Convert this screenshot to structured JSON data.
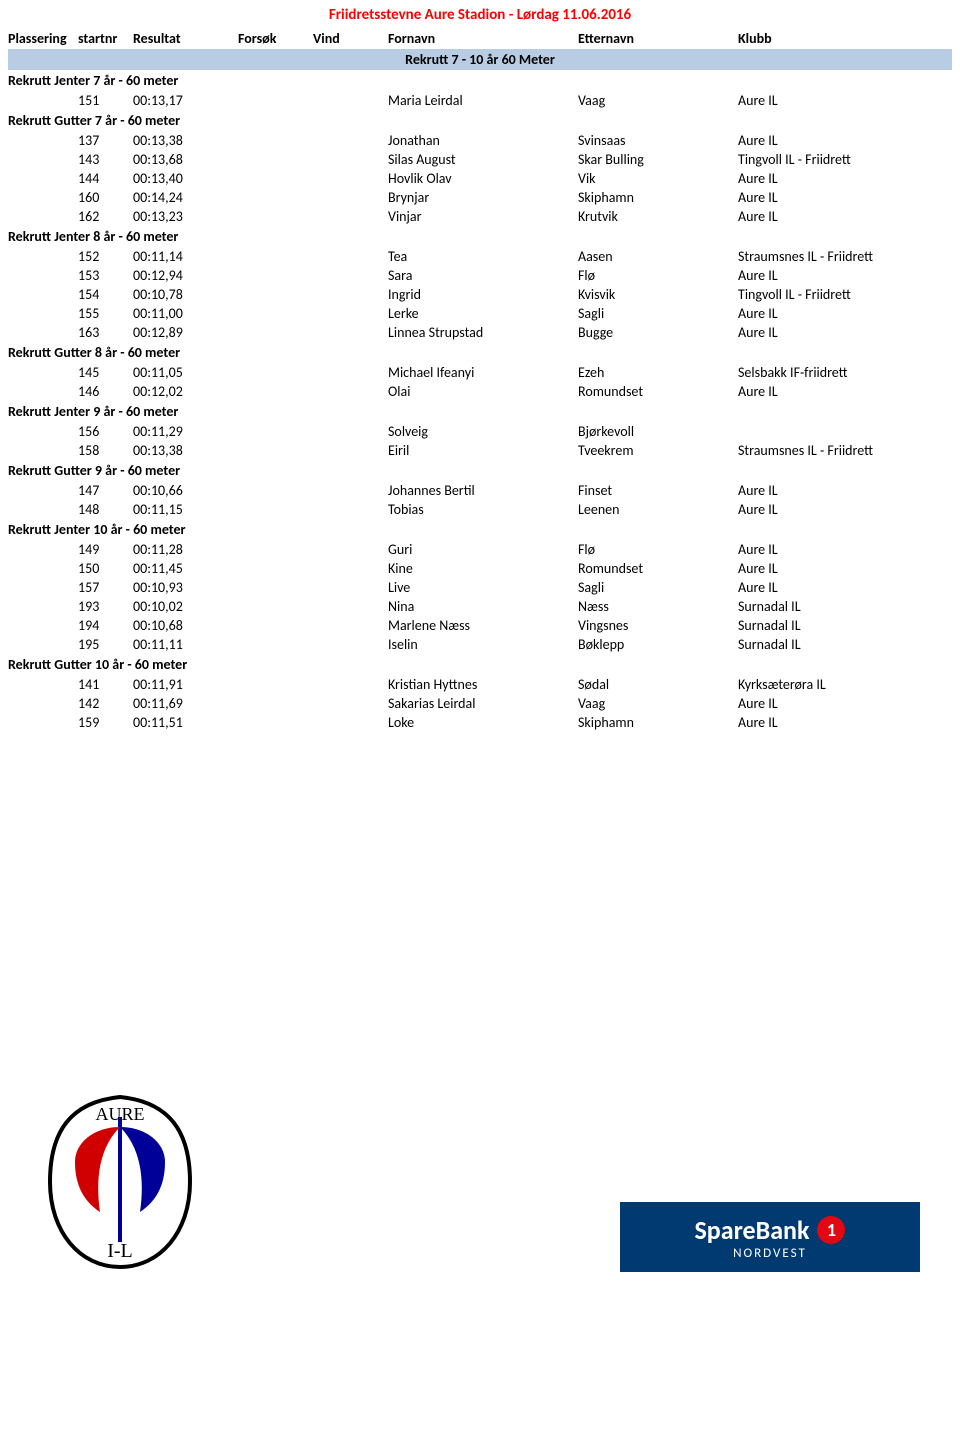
{
  "title": "Friidretsstevne Aure Stadion - Lørdag 11.06.2016",
  "title_color": "#ff0000",
  "banner": "Rekrutt 7 - 10 år 60 Meter",
  "banner_bg": "#b8cce4",
  "header": {
    "plassering": "Plassering",
    "startnr": "startnr",
    "resultat": "Resultat",
    "forsok": "Forsøk",
    "vind": "Vind",
    "fornavn": "Fornavn",
    "etternavn": "Etternavn",
    "klubb": "Klubb"
  },
  "groups": [
    {
      "label": "Rekrutt Jenter 7 år - 60 meter",
      "rows": [
        {
          "startnr": "151",
          "resultat": "00:13,17",
          "fornavn": "Maria Leirdal",
          "etternavn": "Vaag",
          "klubb": "Aure IL"
        }
      ]
    },
    {
      "label": "Rekrutt Gutter 7 år - 60 meter",
      "rows": [
        {
          "startnr": "137",
          "resultat": "00:13,38",
          "fornavn": "Jonathan",
          "etternavn": "Svinsaas",
          "klubb": "Aure IL"
        },
        {
          "startnr": "143",
          "resultat": "00:13,68",
          "fornavn": "Silas August",
          "etternavn": "Skar Bulling",
          "klubb": "Tingvoll IL - Friidrett"
        },
        {
          "startnr": "144",
          "resultat": "00:13,40",
          "fornavn": "Hovlik Olav",
          "etternavn": "Vik",
          "klubb": "Aure IL"
        },
        {
          "startnr": "160",
          "resultat": "00:14,24",
          "fornavn": "Brynjar",
          "etternavn": "Skiphamn",
          "klubb": "Aure IL"
        },
        {
          "startnr": "162",
          "resultat": "00:13,23",
          "fornavn": "Vinjar",
          "etternavn": "Krutvik",
          "klubb": "Aure IL"
        }
      ]
    },
    {
      "label": "Rekrutt Jenter 8 år - 60 meter",
      "rows": [
        {
          "startnr": "152",
          "resultat": "00:11,14",
          "fornavn": "Tea",
          "etternavn": "Aasen",
          "klubb": "Straumsnes IL - Friidrett"
        },
        {
          "startnr": "153",
          "resultat": "00:12,94",
          "fornavn": "Sara",
          "etternavn": "Flø",
          "klubb": "Aure IL"
        },
        {
          "startnr": "154",
          "resultat": "00:10,78",
          "fornavn": "Ingrid",
          "etternavn": "Kvisvik",
          "klubb": "Tingvoll IL - Friidrett"
        },
        {
          "startnr": "155",
          "resultat": "00:11,00",
          "fornavn": "Lerke",
          "etternavn": "Sagli",
          "klubb": "Aure IL"
        },
        {
          "startnr": "163",
          "resultat": "00:12,89",
          "fornavn": "Linnea Strupstad",
          "etternavn": "Bugge",
          "klubb": "Aure IL"
        }
      ]
    },
    {
      "label": "Rekrutt Gutter 8 år - 60 meter",
      "rows": [
        {
          "startnr": "145",
          "resultat": "00:11,05",
          "fornavn": "Michael Ifeanyi",
          "etternavn": "Ezeh",
          "klubb": "Selsbakk IF-friidrett"
        },
        {
          "startnr": "146",
          "resultat": "00:12,02",
          "fornavn": "Olai",
          "etternavn": "Romundset",
          "klubb": "Aure IL"
        }
      ]
    },
    {
      "label": "Rekrutt Jenter 9 år - 60 meter",
      "rows": [
        {
          "startnr": "156",
          "resultat": "00:11,29",
          "fornavn": "Solveig",
          "etternavn": "Bjørkevoll",
          "klubb": ""
        },
        {
          "startnr": "158",
          "resultat": "00:13,38",
          "fornavn": "Eiril",
          "etternavn": "Tveekrem",
          "klubb": "Straumsnes IL - Friidrett"
        }
      ]
    },
    {
      "label": "Rekrutt Gutter 9 år - 60 meter",
      "rows": [
        {
          "startnr": "147",
          "resultat": "00:10,66",
          "fornavn": "Johannes Bertil",
          "etternavn": "Finset",
          "klubb": "Aure IL"
        },
        {
          "startnr": "148",
          "resultat": "00:11,15",
          "fornavn": "Tobias",
          "etternavn": "Leenen",
          "klubb": "Aure IL"
        }
      ]
    },
    {
      "label": "Rekrutt Jenter 10 år - 60 meter",
      "rows": [
        {
          "startnr": "149",
          "resultat": "00:11,28",
          "fornavn": "Guri",
          "etternavn": "Flø",
          "klubb": "Aure IL"
        },
        {
          "startnr": "150",
          "resultat": "00:11,45",
          "fornavn": "Kine",
          "etternavn": "Romundset",
          "klubb": "Aure IL"
        },
        {
          "startnr": "157",
          "resultat": "00:10,93",
          "fornavn": "Live",
          "etternavn": "Sagli",
          "klubb": "Aure IL"
        },
        {
          "startnr": "193",
          "resultat": "00:10,02",
          "fornavn": "Nina",
          "etternavn": "Næss",
          "klubb": "Surnadal IL"
        },
        {
          "startnr": "194",
          "resultat": "00:10,68",
          "fornavn": "Marlene Næss",
          "etternavn": "Vingsnes",
          "klubb": "Surnadal IL"
        },
        {
          "startnr": "195",
          "resultat": "00:11,11",
          "fornavn": "Iselin",
          "etternavn": "Bøklepp",
          "klubb": "Surnadal IL"
        }
      ]
    },
    {
      "label": "Rekrutt Gutter 10 år - 60 meter",
      "rows": [
        {
          "startnr": "141",
          "resultat": "00:11,91",
          "fornavn": "Kristian Hyttnes",
          "etternavn": "Sødal",
          "klubb": "Kyrksæterøra IL"
        },
        {
          "startnr": "142",
          "resultat": "00:11,69",
          "fornavn": "Sakarias Leirdal",
          "etternavn": "Vaag",
          "klubb": "Aure IL"
        },
        {
          "startnr": "159",
          "resultat": "00:11,51",
          "fornavn": "Loke",
          "etternavn": "Skiphamn",
          "klubb": "Aure IL"
        }
      ]
    }
  ],
  "footer": {
    "aure_logo_text_top": "AURE",
    "aure_logo_text_bot": "I-L",
    "sb_text": "SpareBank",
    "sb_num": "1",
    "sb_region": "NORDVEST"
  }
}
